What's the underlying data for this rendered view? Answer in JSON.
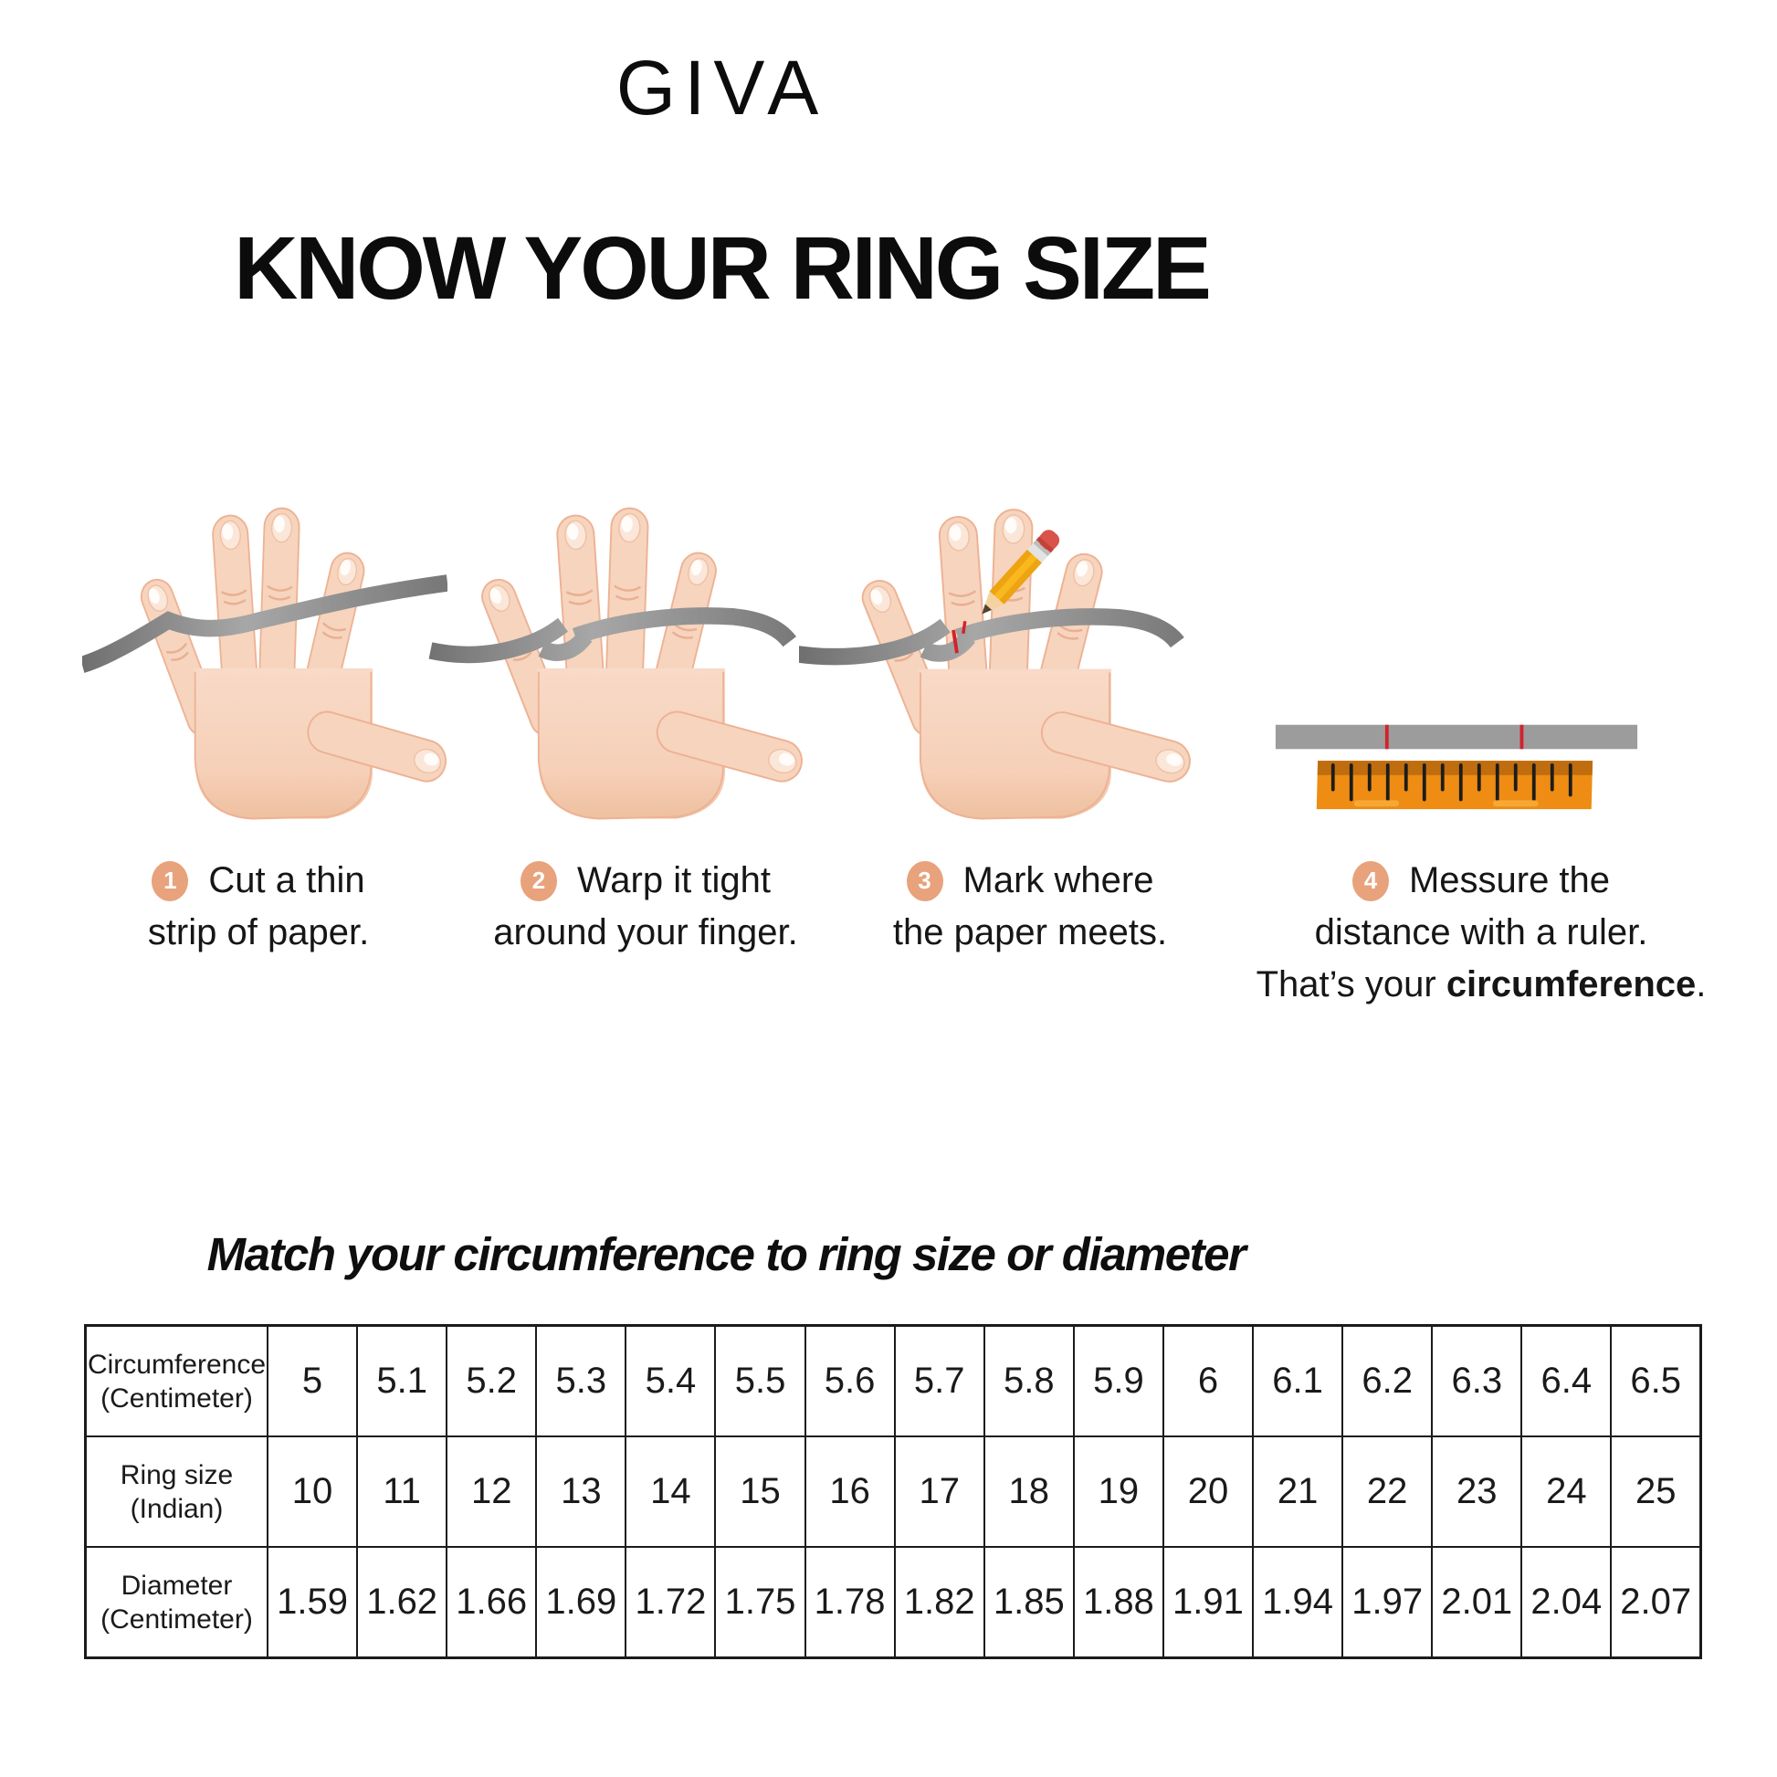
{
  "brand": "GIVA",
  "title": "KNOW YOUR RING SIZE",
  "steps": [
    {
      "number": "1",
      "line1": "Cut a thin",
      "line2": "strip of paper."
    },
    {
      "number": "2",
      "line1": "Warp it tight",
      "line2": "around your finger."
    },
    {
      "number": "3",
      "line1": "Mark where",
      "line2": "the paper meets."
    },
    {
      "number": "4",
      "line1": "Messure the",
      "line2": "distance with a ruler.",
      "line3_prefix": "That’s your ",
      "line3_bold": "circumference",
      "line3_suffix": "."
    }
  ],
  "subtitle": "Match your circumference to ring size or diameter",
  "table": {
    "rows": [
      {
        "label_line1": "Circumference",
        "label_line2": "(Centimeter)",
        "values": [
          "5",
          "5.1",
          "5.2",
          "5.3",
          "5.4",
          "5.5",
          "5.6",
          "5.7",
          "5.8",
          "5.9",
          "6",
          "6.1",
          "6.2",
          "6.3",
          "6.4",
          "6.5"
        ]
      },
      {
        "label_line1": "Ring size",
        "label_line2": "(Indian)",
        "values": [
          "10",
          "11",
          "12",
          "13",
          "14",
          "15",
          "16",
          "17",
          "18",
          "19",
          "20",
          "21",
          "22",
          "23",
          "24",
          "25"
        ]
      },
      {
        "label_line1": "Diameter",
        "label_line2": "(Centimeter)",
        "values": [
          "1.59",
          "1.62",
          "1.66",
          "1.69",
          "1.72",
          "1.75",
          "1.78",
          "1.82",
          "1.85",
          "1.88",
          "1.91",
          "1.94",
          "1.97",
          "2.01",
          "2.04",
          "2.07"
        ]
      }
    ]
  },
  "chart_data": {
    "type": "table",
    "title": "Match your circumference to ring size or diameter",
    "rows": [
      {
        "label": "Circumference (Centimeter)",
        "values": [
          5,
          5.1,
          5.2,
          5.3,
          5.4,
          5.5,
          5.6,
          5.7,
          5.8,
          5.9,
          6,
          6.1,
          6.2,
          6.3,
          6.4,
          6.5
        ]
      },
      {
        "label": "Ring size (Indian)",
        "values": [
          10,
          11,
          12,
          13,
          14,
          15,
          16,
          17,
          18,
          19,
          20,
          21,
          22,
          23,
          24,
          25
        ]
      },
      {
        "label": "Diameter (Centimeter)",
        "values": [
          1.59,
          1.62,
          1.66,
          1.69,
          1.72,
          1.75,
          1.78,
          1.82,
          1.85,
          1.88,
          1.91,
          1.94,
          1.97,
          2.01,
          2.04,
          2.07
        ]
      }
    ]
  },
  "colors": {
    "badge": "#e8a27c",
    "skin": "#f7d4bd",
    "skin_outline": "#edb294",
    "strip_gray": "#8f8f8f",
    "ruler_orange": "#ee8c13",
    "ruler_band": "#bf6d0e",
    "mark_red": "#d2232a",
    "pencil_yellow": "#f8b81e",
    "eraser_red": "#d9534a",
    "text": "#161616"
  }
}
